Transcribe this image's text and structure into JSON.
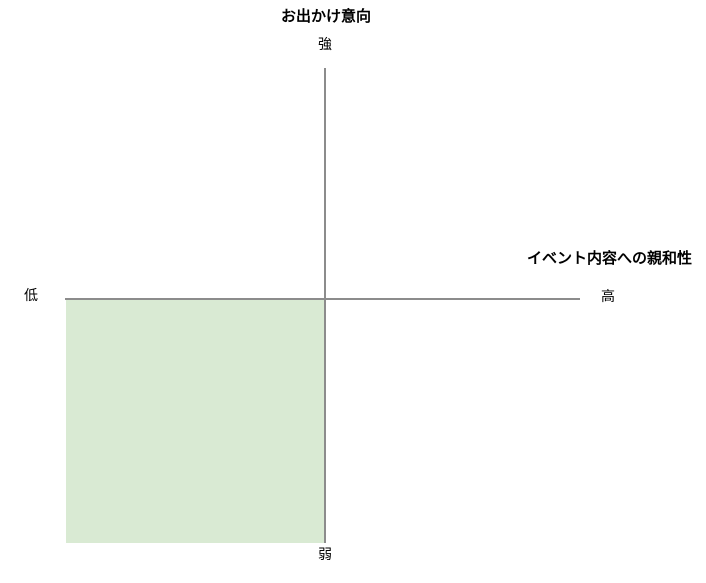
{
  "diagram": {
    "type": "quadrant-map",
    "vertical_axis": {
      "title": "お出かけ意向",
      "top_label": "強",
      "bottom_label": "弱"
    },
    "horizontal_axis": {
      "title": "イベント内容への親和性",
      "left_label": "低",
      "right_label": "高"
    },
    "highlighted_quadrant": "bottom-left",
    "colors": {
      "quadrant_fill": "#d9ead3",
      "axis_line": "#8c8c8c",
      "text": "#000000"
    }
  }
}
